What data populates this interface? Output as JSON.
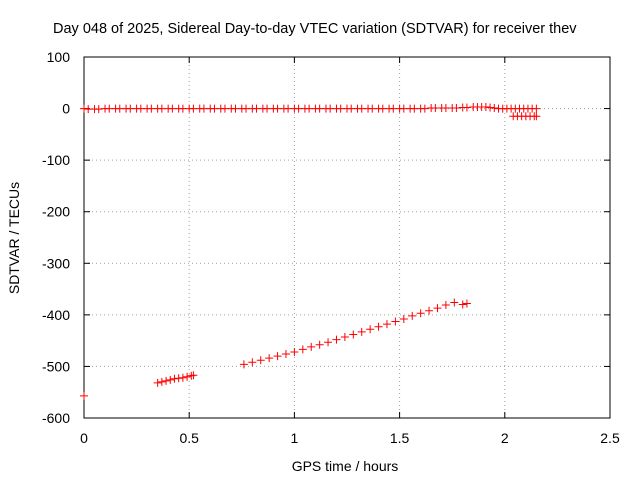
{
  "chart_data": {
    "type": "scatter",
    "title": "Day 048 of 2025, Sidereal Day-to-day VTEC variation (SDTVAR) for receiver thev",
    "xlabel": "GPS time / hours",
    "ylabel": "SDTVAR / TECUs",
    "xlim": [
      0,
      2.5
    ],
    "ylim": [
      -600,
      100
    ],
    "xticks": [
      "0",
      "0.5",
      "1",
      "1.5",
      "2",
      "2.5"
    ],
    "yticks": [
      "100",
      "0",
      "-100",
      "-200",
      "-300",
      "-400",
      "-500",
      "-600"
    ],
    "grid": true,
    "marker": "plus",
    "color": "#ff0000",
    "series": [
      {
        "points": [
          [
            0.0,
            0
          ],
          [
            0.02,
            -1
          ],
          [
            0.05,
            -1
          ],
          [
            0.07,
            -1
          ],
          [
            0.1,
            0
          ],
          [
            0.12,
            0
          ],
          [
            0.15,
            0
          ],
          [
            0.17,
            0
          ],
          [
            0.2,
            0
          ],
          [
            0.22,
            0
          ],
          [
            0.25,
            0
          ],
          [
            0.27,
            0
          ],
          [
            0.3,
            0
          ],
          [
            0.32,
            0
          ],
          [
            0.35,
            0
          ],
          [
            0.37,
            0
          ],
          [
            0.4,
            0
          ],
          [
            0.42,
            0
          ],
          [
            0.45,
            0
          ],
          [
            0.47,
            0
          ],
          [
            0.5,
            0
          ],
          [
            0.52,
            0
          ],
          [
            0.55,
            0
          ],
          [
            0.57,
            0
          ],
          [
            0.6,
            0
          ],
          [
            0.62,
            0
          ],
          [
            0.65,
            0
          ],
          [
            0.67,
            0
          ],
          [
            0.7,
            0
          ],
          [
            0.72,
            0
          ],
          [
            0.75,
            0
          ],
          [
            0.77,
            0
          ],
          [
            0.8,
            0
          ],
          [
            0.82,
            0
          ],
          [
            0.85,
            0
          ],
          [
            0.87,
            0
          ],
          [
            0.9,
            0
          ],
          [
            0.92,
            0
          ],
          [
            0.95,
            0
          ],
          [
            0.97,
            0
          ],
          [
            1.0,
            0
          ],
          [
            1.02,
            0
          ],
          [
            1.05,
            0
          ],
          [
            1.07,
            0
          ],
          [
            1.1,
            0
          ],
          [
            1.12,
            0
          ],
          [
            1.15,
            0
          ],
          [
            1.17,
            0
          ],
          [
            1.2,
            0
          ],
          [
            1.22,
            0
          ],
          [
            1.25,
            0
          ],
          [
            1.27,
            0
          ],
          [
            1.3,
            0
          ],
          [
            1.32,
            0
          ],
          [
            1.35,
            0
          ],
          [
            1.37,
            0
          ],
          [
            1.4,
            0
          ],
          [
            1.42,
            0
          ],
          [
            1.45,
            0
          ],
          [
            1.47,
            0
          ],
          [
            1.5,
            0
          ],
          [
            1.52,
            0
          ],
          [
            1.55,
            0
          ],
          [
            1.57,
            0
          ],
          [
            1.6,
            0
          ],
          [
            1.62,
            0
          ],
          [
            1.65,
            1
          ],
          [
            1.67,
            1
          ],
          [
            1.7,
            1
          ],
          [
            1.72,
            1
          ],
          [
            1.75,
            1
          ],
          [
            1.77,
            1
          ],
          [
            1.8,
            2
          ],
          [
            1.82,
            2
          ],
          [
            1.85,
            3
          ],
          [
            1.87,
            3
          ],
          [
            1.89,
            3
          ],
          [
            1.91,
            3
          ],
          [
            1.93,
            2
          ],
          [
            1.95,
            1
          ],
          [
            1.97,
            0
          ],
          [
            1.99,
            0
          ],
          [
            2.01,
            0
          ],
          [
            2.03,
            0
          ],
          [
            2.05,
            0
          ],
          [
            2.07,
            0
          ],
          [
            2.09,
            0
          ],
          [
            2.11,
            0
          ],
          [
            2.13,
            0
          ],
          [
            2.15,
            0
          ],
          [
            2.04,
            -15
          ],
          [
            2.06,
            -15
          ],
          [
            2.08,
            -15
          ],
          [
            2.1,
            -15
          ],
          [
            2.12,
            -15
          ],
          [
            2.14,
            -15
          ],
          [
            2.15,
            -15
          ],
          [
            0.0,
            -557
          ],
          [
            0.35,
            -532
          ],
          [
            0.37,
            -530
          ],
          [
            0.39,
            -528
          ],
          [
            0.41,
            -526
          ],
          [
            0.43,
            -524
          ],
          [
            0.45,
            -523
          ],
          [
            0.47,
            -522
          ],
          [
            0.49,
            -520
          ],
          [
            0.51,
            -518
          ],
          [
            0.52,
            -517
          ],
          [
            0.76,
            -496
          ],
          [
            0.8,
            -492
          ],
          [
            0.84,
            -488
          ],
          [
            0.88,
            -484
          ],
          [
            0.92,
            -480
          ],
          [
            0.96,
            -476
          ],
          [
            1.0,
            -472
          ],
          [
            1.04,
            -467
          ],
          [
            1.08,
            -462
          ],
          [
            1.12,
            -458
          ],
          [
            1.16,
            -453
          ],
          [
            1.2,
            -448
          ],
          [
            1.24,
            -443
          ],
          [
            1.28,
            -438
          ],
          [
            1.32,
            -433
          ],
          [
            1.36,
            -428
          ],
          [
            1.4,
            -423
          ],
          [
            1.44,
            -418
          ],
          [
            1.48,
            -413
          ],
          [
            1.52,
            -408
          ],
          [
            1.56,
            -402
          ],
          [
            1.6,
            -397
          ],
          [
            1.64,
            -392
          ],
          [
            1.68,
            -387
          ],
          [
            1.72,
            -381
          ],
          [
            1.76,
            -376
          ],
          [
            1.8,
            -380
          ],
          [
            1.82,
            -378
          ]
        ]
      }
    ]
  }
}
